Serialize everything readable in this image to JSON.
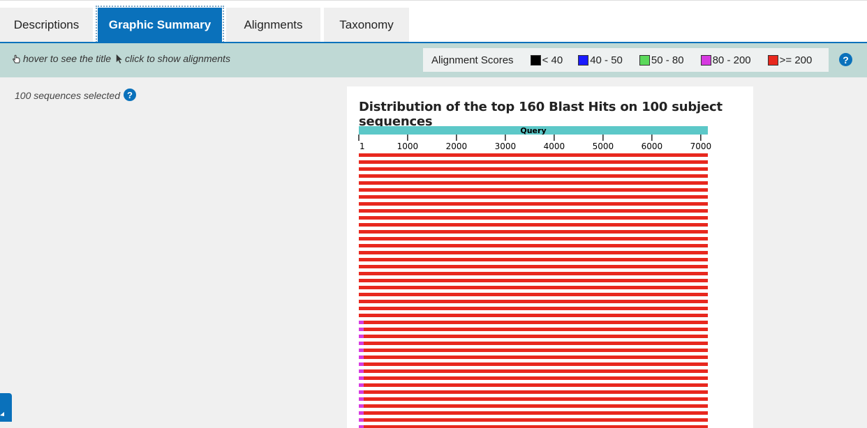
{
  "tabs": [
    {
      "label": "Descriptions",
      "active": false
    },
    {
      "label": "Graphic Summary",
      "active": true
    },
    {
      "label": "Alignments",
      "active": false
    },
    {
      "label": "Taxonomy",
      "active": false
    }
  ],
  "toolbar": {
    "hover_hint": "hover to see the title",
    "click_hint": "click to show alignments"
  },
  "legend": {
    "label": "Alignment Scores",
    "items": [
      {
        "label": "< 40",
        "color": "#000000"
      },
      {
        "label": "40 - 50",
        "color": "#1a1aff"
      },
      {
        "label": "50 - 80",
        "color": "#5bd95b"
      },
      {
        "label": "80 - 200",
        "color": "#d63ae0"
      },
      {
        "label": ">= 200",
        "color": "#e8281e"
      }
    ]
  },
  "selection": {
    "text": "100 sequences selected"
  },
  "help_symbol": "?",
  "chart_data": {
    "type": "bar",
    "title": "Distribution of the top 160 Blast Hits on 100 subject sequences",
    "query_label": "Query",
    "query_length": 7145,
    "ticks": [
      "1",
      "1000",
      "2000",
      "3000",
      "4000",
      "5000",
      "6000",
      "7000"
    ],
    "tick_values": [
      1,
      1000,
      2000,
      3000,
      4000,
      5000,
      6000,
      7000
    ],
    "visible_hits": 40,
    "hits_full_count": 24,
    "hits_full": {
      "start": 1,
      "end": 7145,
      "color": "#e8281e"
    },
    "hits_split": {
      "segments": [
        {
          "start": 1,
          "end": 100,
          "color": "#d63ae0"
        },
        {
          "start": 100,
          "end": 7145,
          "color": "#e8281e"
        }
      ]
    }
  }
}
